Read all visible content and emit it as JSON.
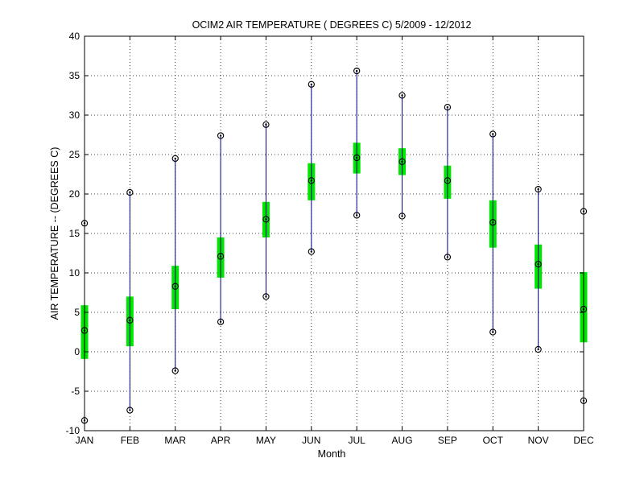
{
  "chart_data": {
    "type": "boxplot",
    "title": "OCIM2  AIR TEMPERATURE ( DEGREES C) 5/2009 - 12/2012",
    "xlabel": "Month",
    "ylabel": "AIR TEMPERATURE -- (DEGREES C)",
    "ylim": [
      -10,
      40
    ],
    "yticks": [
      -10,
      -5,
      0,
      5,
      10,
      15,
      20,
      25,
      30,
      35,
      40
    ],
    "grid": true,
    "categories": [
      "JAN",
      "FEB",
      "MAR",
      "APR",
      "MAY",
      "JUN",
      "JUL",
      "AUG",
      "SEP",
      "OCT",
      "NOV",
      "DEC"
    ],
    "series": [
      {
        "min": -8.7,
        "q1": -0.9,
        "mean": 2.7,
        "q3": 5.9,
        "max": 16.3
      },
      {
        "min": -7.4,
        "q1": 0.7,
        "mean": 4.0,
        "q3": 7.0,
        "max": 20.2
      },
      {
        "min": -2.4,
        "q1": 5.4,
        "mean": 8.3,
        "q3": 10.9,
        "max": 24.5
      },
      {
        "min": 3.8,
        "q1": 9.4,
        "mean": 12.1,
        "q3": 14.5,
        "max": 27.4
      },
      {
        "min": 7.0,
        "q1": 14.5,
        "mean": 16.8,
        "q3": 19.0,
        "max": 28.8
      },
      {
        "min": 12.7,
        "q1": 19.2,
        "mean": 21.7,
        "q3": 23.9,
        "max": 33.9
      },
      {
        "min": 17.3,
        "q1": 22.6,
        "mean": 24.6,
        "q3": 26.5,
        "max": 35.6
      },
      {
        "min": 17.2,
        "q1": 22.4,
        "mean": 24.1,
        "q3": 25.8,
        "max": 32.5
      },
      {
        "min": 12.0,
        "q1": 19.4,
        "mean": 21.7,
        "q3": 23.6,
        "max": 31.0
      },
      {
        "min": 2.5,
        "q1": 13.2,
        "mean": 16.4,
        "q3": 19.2,
        "max": 27.6
      },
      {
        "min": 0.3,
        "q1": 8.0,
        "mean": 11.1,
        "q3": 13.6,
        "max": 20.6
      },
      {
        "min": -6.2,
        "q1": 1.2,
        "mean": 5.4,
        "q3": 10.1,
        "max": 17.8
      }
    ],
    "colors": {
      "whisker": "#00008b",
      "box": "#00e600",
      "marker": "#000000",
      "grid": "#000000"
    }
  }
}
